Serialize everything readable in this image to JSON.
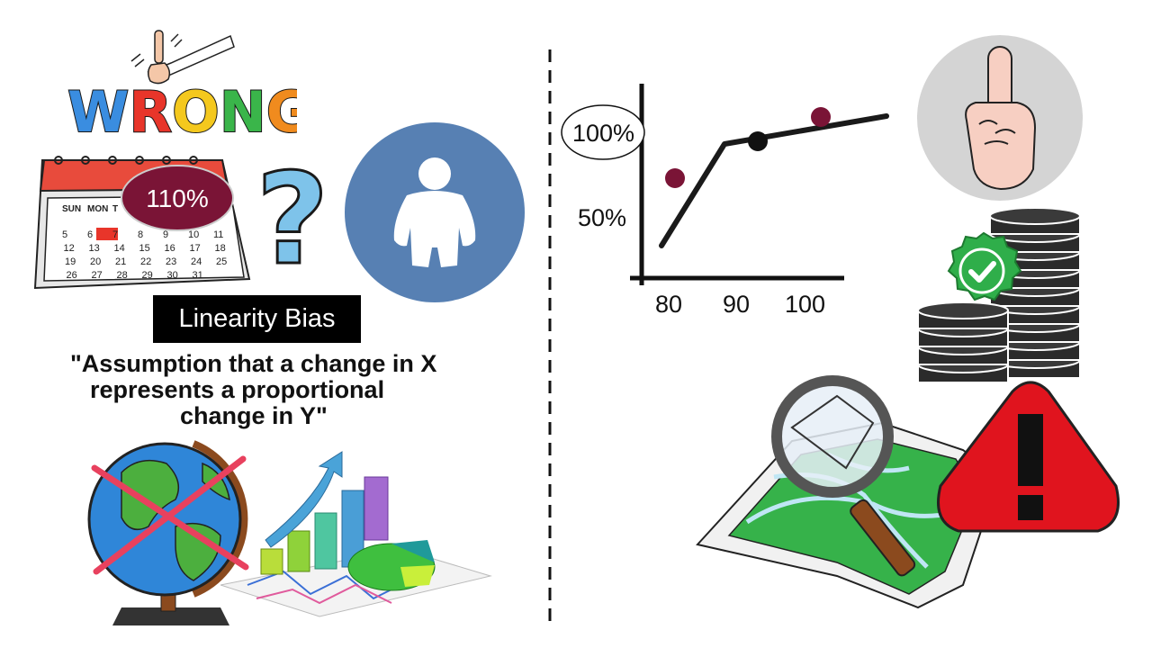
{
  "left_panel": {
    "exclamation_word": "WRONG!",
    "calendar": {
      "days_header": [
        "SUN",
        "MON",
        "T"
      ],
      "dates": [
        [
          "5",
          "6",
          "7",
          "8",
          "9",
          "10",
          "11"
        ],
        [
          "12",
          "13",
          "14",
          "15",
          "16",
          "17",
          "18"
        ],
        [
          "19",
          "20",
          "21",
          "22",
          "23",
          "24",
          "25"
        ],
        [
          "26",
          "27",
          "28",
          "29",
          "30",
          "31",
          ""
        ]
      ],
      "bubble_text": "110%"
    },
    "title": "Linearity Bias",
    "definition_lines": [
      "\"Assumption that a change in X",
      "represents a proportional",
      "change in Y\""
    ]
  },
  "right_panel": {
    "graph": {
      "y_labels": [
        "100%",
        "50%"
      ],
      "x_labels": [
        "80",
        "90",
        "100"
      ]
    }
  },
  "colors": {
    "person_circle": "#5780b3",
    "bubble": "#7a1436",
    "cross": "#e8415e",
    "warning_red": "#e0141e",
    "badge_green": "#2fae4a",
    "data_point": "#7a1436"
  }
}
